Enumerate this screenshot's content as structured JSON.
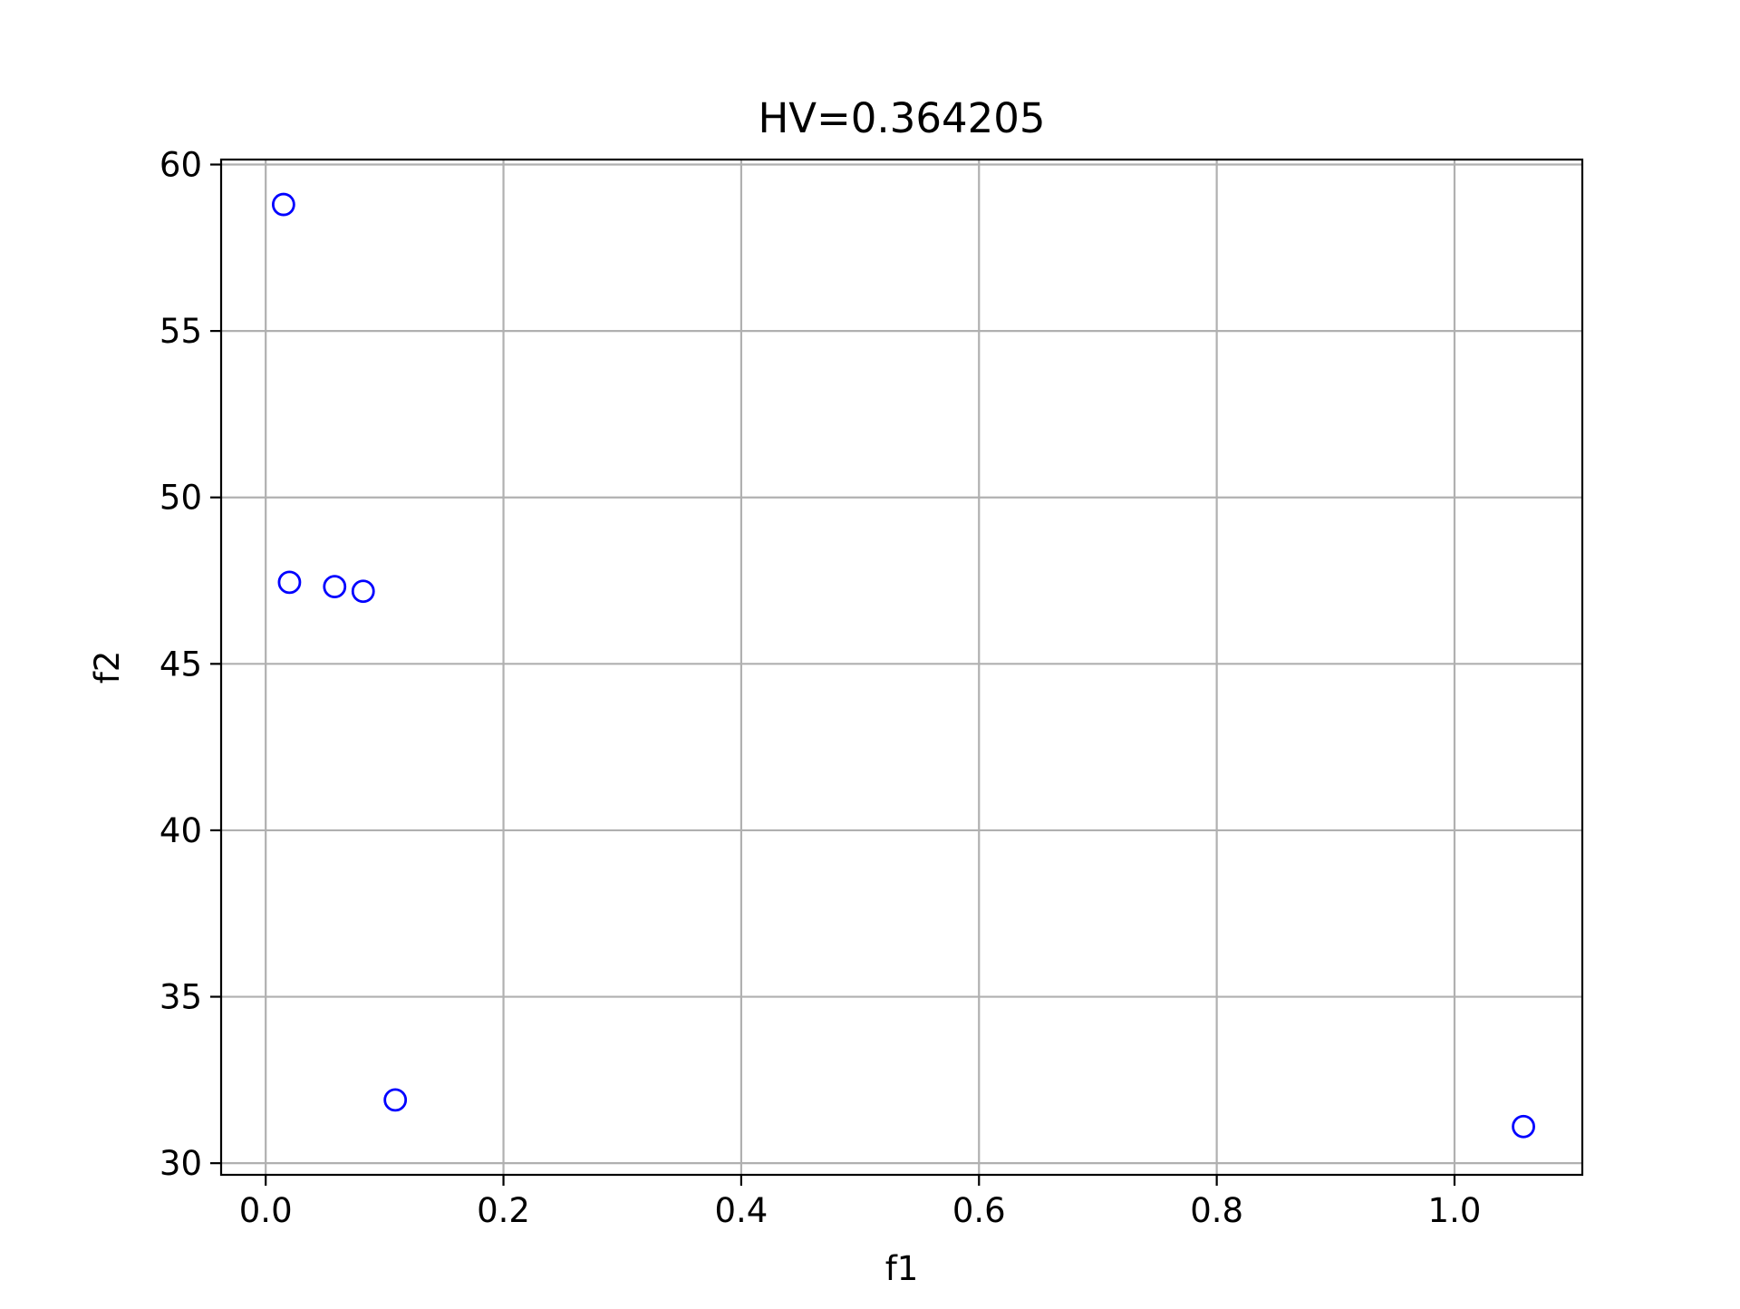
{
  "chart_data": {
    "type": "scatter",
    "title": "HV=0.364205",
    "xlabel": "f1",
    "ylabel": "f2",
    "xlim": [
      -0.0375,
      1.1075
    ],
    "ylim": [
      29.65,
      60.15
    ],
    "x_ticks": [
      "0.0",
      "0.2",
      "0.4",
      "0.6",
      "0.8",
      "1.0"
    ],
    "x_tick_values": [
      0.0,
      0.2,
      0.4,
      0.6,
      0.8,
      1.0
    ],
    "y_ticks": [
      "30",
      "35",
      "40",
      "45",
      "50",
      "55",
      "60"
    ],
    "y_tick_values": [
      30,
      35,
      40,
      45,
      50,
      55,
      60
    ],
    "grid": true,
    "marker": "hollow-circle",
    "point_color": "#0000ff",
    "points": [
      {
        "x": 0.015,
        "y": 58.8
      },
      {
        "x": 0.02,
        "y": 47.45
      },
      {
        "x": 0.058,
        "y": 47.32
      },
      {
        "x": 0.082,
        "y": 47.18
      },
      {
        "x": 0.109,
        "y": 31.9
      },
      {
        "x": 1.058,
        "y": 31.1
      }
    ]
  }
}
